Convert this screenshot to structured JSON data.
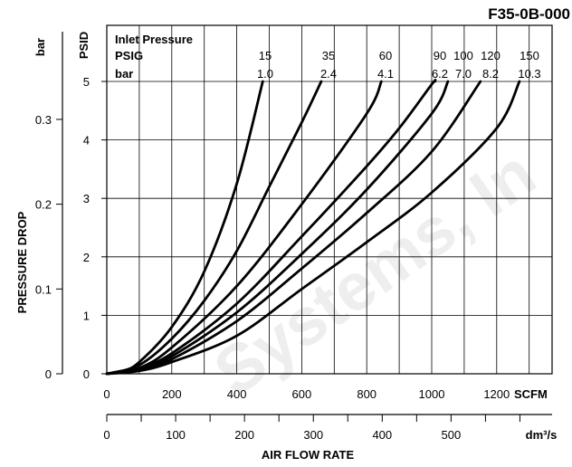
{
  "figure_id": "F35-0B-000",
  "watermark": "Systems, In",
  "chart_data": {
    "type": "line",
    "ylabel": "PRESSURE DROP",
    "xlabel": "AIR FLOW RATE",
    "y_primary": {
      "unit": "PSID",
      "ticks": [
        "0",
        "1",
        "2",
        "3",
        "4",
        "5"
      ],
      "ylim": [
        0,
        5
      ]
    },
    "y_secondary": {
      "unit": "bar",
      "ticks": [
        "0",
        "0.1",
        "0.2",
        "0.3"
      ]
    },
    "x_primary": {
      "unit": "SCFM",
      "ticks": [
        "0",
        "200",
        "400",
        "600",
        "800",
        "1000",
        "1200"
      ],
      "xlim": [
        0,
        1400
      ]
    },
    "x_secondary": {
      "unit": "dm³/s",
      "ticks": [
        "0",
        "100",
        "200",
        "300",
        "400",
        "500"
      ]
    },
    "grid": true,
    "legend_header": {
      "title": "Inlet Pressure",
      "row1": "PSIG",
      "row2": "bar"
    },
    "series": [
      {
        "psig": "15",
        "bar": "1.0",
        "points": [
          [
            0,
            0
          ],
          [
            50,
            0.05
          ],
          [
            100,
            0.2
          ],
          [
            200,
            0.8
          ],
          [
            300,
            1.75
          ],
          [
            400,
            3.25
          ],
          [
            480,
            5.0
          ]
        ]
      },
      {
        "psig": "35",
        "bar": "2.4",
        "points": [
          [
            0,
            0
          ],
          [
            100,
            0.15
          ],
          [
            200,
            0.6
          ],
          [
            300,
            1.25
          ],
          [
            400,
            2.1
          ],
          [
            500,
            3.2
          ],
          [
            600,
            4.3
          ],
          [
            660,
            5.0
          ]
        ]
      },
      {
        "psig": "60",
        "bar": "4.1",
        "points": [
          [
            0,
            0
          ],
          [
            100,
            0.1
          ],
          [
            200,
            0.45
          ],
          [
            400,
            1.5
          ],
          [
            600,
            2.9
          ],
          [
            800,
            4.45
          ],
          [
            845,
            5.0
          ]
        ]
      },
      {
        "psig": "90",
        "bar": "6.2",
        "points": [
          [
            0,
            0
          ],
          [
            100,
            0.1
          ],
          [
            200,
            0.35
          ],
          [
            400,
            1.2
          ],
          [
            600,
            2.35
          ],
          [
            800,
            3.55
          ],
          [
            900,
            4.2
          ],
          [
            1000,
            4.95
          ],
          [
            1010,
            5.0
          ]
        ]
      },
      {
        "psig": "100",
        "bar": "7.0",
        "points": [
          [
            0,
            0
          ],
          [
            100,
            0.08
          ],
          [
            200,
            0.3
          ],
          [
            400,
            1.05
          ],
          [
            600,
            2.05
          ],
          [
            800,
            3.15
          ],
          [
            1000,
            4.45
          ],
          [
            1050,
            5.0
          ]
        ]
      },
      {
        "psig": "120",
        "bar": "8.2",
        "points": [
          [
            0,
            0
          ],
          [
            100,
            0.07
          ],
          [
            200,
            0.25
          ],
          [
            400,
            0.9
          ],
          [
            600,
            1.8
          ],
          [
            800,
            2.75
          ],
          [
            1000,
            3.8
          ],
          [
            1150,
            5.0
          ]
        ]
      },
      {
        "psig": "150",
        "bar": "10.3",
        "points": [
          [
            0,
            0
          ],
          [
            100,
            0.05
          ],
          [
            200,
            0.2
          ],
          [
            400,
            0.65
          ],
          [
            600,
            1.45
          ],
          [
            800,
            2.25
          ],
          [
            1000,
            3.1
          ],
          [
            1200,
            4.2
          ],
          [
            1270,
            5.0
          ]
        ]
      }
    ]
  }
}
